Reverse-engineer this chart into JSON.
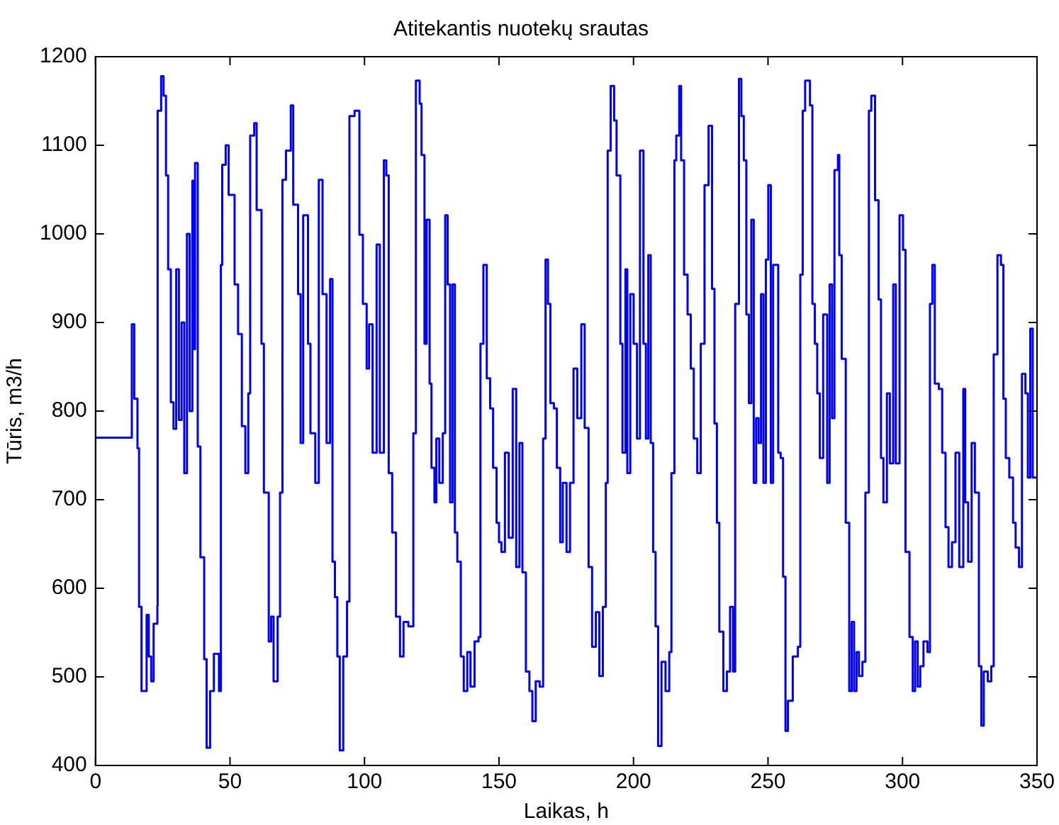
{
  "chart_data": {
    "type": "step",
    "title": "Atitekantis nuotekų srautas",
    "xlabel": "Laikas, h",
    "ylabel": "Tūris, m3/h",
    "xlim": [
      0,
      350
    ],
    "xticks": [
      0,
      50,
      100,
      150,
      200,
      250,
      300,
      350
    ],
    "ylim": [
      400,
      1200
    ],
    "yticks": [
      400,
      500,
      600,
      700,
      800,
      900,
      1000,
      1100,
      1200
    ],
    "grid": false,
    "legend": false,
    "marker": "none",
    "line_style": "solid",
    "series": [
      {
        "color": "#0000ff",
        "x": [
          0,
          13.5,
          14.4,
          15.6,
          16.2,
          17.1,
          19,
          19.8,
          20.7,
          21.6,
          23,
          23.1,
          24.4,
          25.3,
          26.2,
          27,
          28,
          29,
          30,
          31,
          32,
          33,
          34,
          35,
          36,
          36.5,
          37,
          38,
          39,
          40.4,
          41.3,
          42.6,
          44,
          45.9,
          46.6,
          47.1,
          48.4,
          49.5,
          51.7,
          53,
          54.4,
          55.7,
          56.8,
          57.5,
          59,
          59.9,
          61.7,
          62.6,
          64.4,
          65.3,
          66.2,
          67.7,
          68.6,
          69.5,
          70.8,
          72.6,
          73.5,
          75.3,
          76.25,
          77.2,
          79,
          79.9,
          81.7,
          83,
          84.4,
          85.9,
          87.2,
          88.1,
          89,
          89.9,
          90.8,
          92.1,
          93.5,
          94.4,
          96.3,
          98.1,
          99.4,
          100.8,
          101.7,
          103,
          104.5,
          105.7,
          107.2,
          108.1,
          109,
          110.3,
          111.7,
          113.2,
          114.5,
          116.3,
          118.15,
          119.1,
          120.5,
          121.2,
          122.3,
          123.1,
          124.2,
          124.9,
          126,
          126.7,
          127.8,
          129.1,
          130,
          130.9,
          131.8,
          132.7,
          133.6,
          134.5,
          135.8,
          136.9,
          138.2,
          139.4,
          140.9,
          142.4,
          143.1,
          144.2,
          145.45,
          146.7,
          147.8,
          149.1,
          150,
          150.9,
          152.2,
          153.6,
          155.1,
          156.4,
          157.6,
          158.7,
          160,
          161.3,
          162.4,
          163.65,
          165.1,
          166.4,
          167.3,
          168.2,
          169.1,
          170.4,
          171.5,
          172.75,
          173.7,
          175.1,
          176.4,
          177.7,
          179.1,
          180.6,
          181.85,
          183.3,
          184.6,
          186,
          187.3,
          188.6,
          189.7,
          190.4,
          191.5,
          192.8,
          193.7,
          195.1,
          195.9,
          197,
          197.7,
          198.8,
          200.05,
          201.3,
          202.4,
          203.7,
          204.6,
          205.5,
          206.4,
          207.3,
          208.2,
          209.15,
          210.4,
          211.9,
          213.3,
          214.1,
          215.2,
          215.9,
          217,
          217.7,
          218.8,
          220.1,
          221.3,
          222.4,
          223.7,
          225,
          226.4,
          227.9,
          229.2,
          230.1,
          231,
          231.9,
          233.4,
          234.7,
          235.9,
          237,
          237.8,
          239.2,
          240.1,
          241,
          241.95,
          242.9,
          243.8,
          244.7,
          245.6,
          246.5,
          247.4,
          248.3,
          249.2,
          250.1,
          251.05,
          251.9,
          253.8,
          254.7,
          255.6,
          256.5,
          257.4,
          259.2,
          261.1,
          262,
          262.9,
          263.8,
          265.6,
          266.5,
          267.4,
          268.3,
          269.25,
          270.5,
          272,
          272.9,
          273.8,
          274.7,
          276,
          276.5,
          277.4,
          278.9,
          280.2,
          281.1,
          282,
          282.9,
          283.8,
          285.1,
          286.2,
          287.5,
          288.4,
          289.8,
          291.1,
          292,
          292.9,
          294.2,
          295.3,
          296.55,
          297.5,
          298.9,
          300.2,
          301.1,
          302.6,
          303.8,
          304.7,
          305.65,
          306.6,
          307.8,
          309.3,
          310.2,
          311.1,
          312,
          313.5,
          314.75,
          316,
          317.1,
          318.4,
          319.7,
          321.1,
          322.6,
          323.3,
          324.4,
          325.7,
          326.9,
          328.4,
          329.3,
          330.2,
          331.7,
          333,
          333.9,
          335.3,
          336.6,
          337.5,
          338.4,
          339.7,
          341.1,
          342.05,
          343.3,
          344.4,
          345.7,
          346.6,
          347.5,
          348.4,
          350
        ],
        "values": [
          770,
          898,
          814,
          758,
          579,
          484,
          570,
          523,
          495,
          560,
          580,
          1139,
          1178,
          1156,
          1066,
          960,
          810,
          780,
          960,
          790,
          900,
          730,
          1000,
          800,
          1060,
          870,
          1080,
          760,
          635,
          520,
          420,
          484,
          526,
          484,
          965,
          1078,
          1100,
          1044,
          943,
          887,
          783,
          730,
          820,
          1111,
          1125,
          1027,
          876,
          708,
          540,
          568,
          495,
          568,
          708,
          1061,
          1094,
          1145,
          1033,
          932,
          764,
          1021,
          876,
          775,
          719,
          1061,
          932,
          764,
          949,
          630,
          590,
          523,
          417,
          523,
          585,
          1133,
          1139,
          999,
          921,
          848,
          898,
          753,
          988,
          753,
          1083,
          1066,
          730,
          663,
          568,
          523,
          562,
          557,
          775,
          1173,
          1147,
          1089,
          876,
          1016,
          831,
          736,
          697,
          769,
          719,
          775,
          1021,
          943,
          697,
          943,
          663,
          630,
          523,
          484,
          528,
          489,
          540,
          545,
          876,
          965,
          837,
          803,
          736,
          674,
          652,
          641,
          753,
          657,
          825,
          624,
          764,
          618,
          506,
          484,
          450,
          495,
          489,
          769,
          971,
          921,
          809,
          803,
          736,
          652,
          719,
          641,
          719,
          848,
          792,
          898,
          781,
          624,
          534,
          573,
          501,
          579,
          719,
          1094,
          1167,
          1128,
          1066,
          876,
          753,
          960,
          730,
          932,
          876,
          769,
          1094,
          876,
          769,
          976,
          764,
          641,
          557,
          422,
          517,
          484,
          528,
          730,
          1083,
          1111,
          1167,
          1083,
          954,
          909,
          848,
          769,
          730,
          876,
          1055,
          1122,
          938,
          786,
          674,
          551,
          484,
          506,
          579,
          506,
          921,
          1175,
          1133,
          1083,
          909,
          809,
          1016,
          719,
          792,
          764,
          932,
          719,
          971,
          1055,
          719,
          965,
          753,
          747,
          613,
          439,
          473,
          523,
          534,
          954,
          1139,
          1173,
          1145,
          921,
          876,
          820,
          747,
          909,
          719,
          943,
          792,
          1072,
          1089,
          976,
          859,
          674,
          484,
          562,
          484,
          528,
          501,
          517,
          708,
          1139,
          1156,
          1038,
          926,
          747,
          697,
          820,
          741,
          943,
          741,
          1021,
          982,
          641,
          545,
          484,
          540,
          489,
          512,
          540,
          528,
          921,
          965,
          831,
          825,
          753,
          669,
          624,
          652,
          753,
          624,
          825,
          697,
          630,
          764,
          708,
          512,
          445,
          506,
          495,
          512,
          864,
          976,
          965,
          814,
          747,
          725,
          674,
          646,
          624,
          842,
          820,
          725,
          893,
          725,
          725
        ]
      }
    ]
  }
}
